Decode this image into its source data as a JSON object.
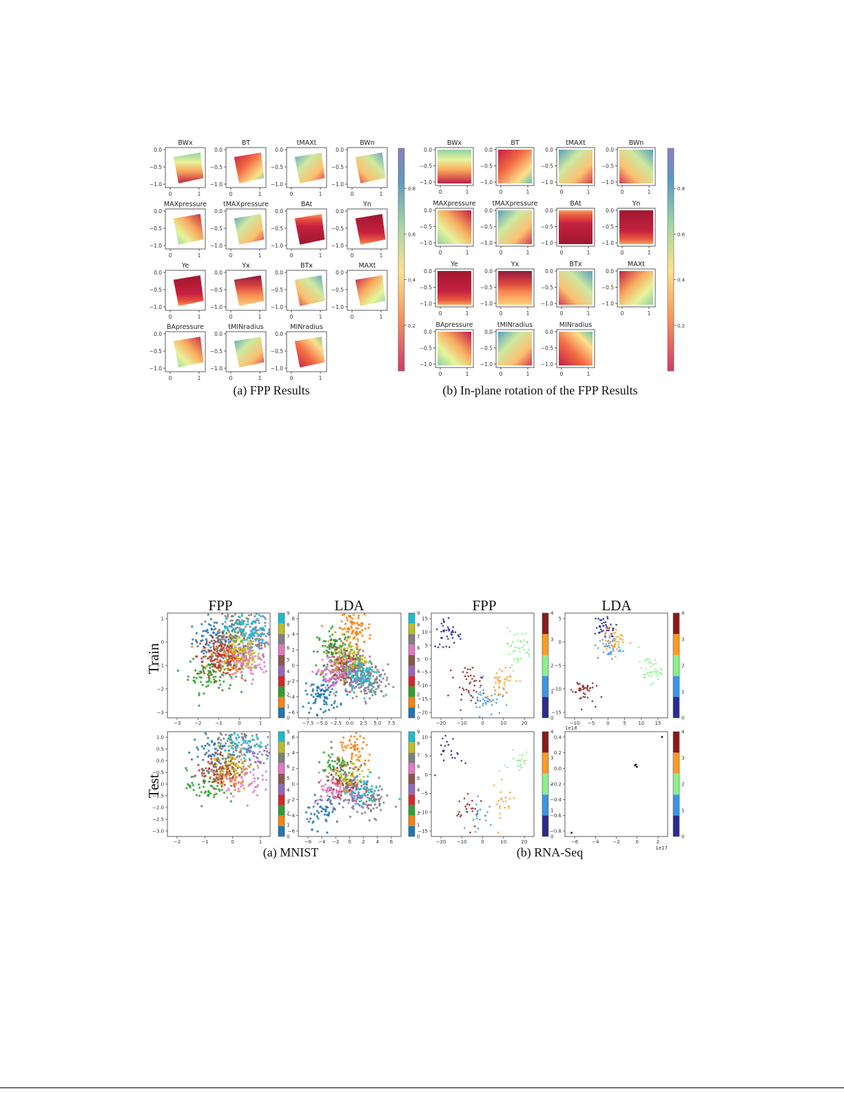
{
  "page": {
    "caption_top_a": "(a) FPP Results",
    "caption_top_b": "(b) In-plane rotation of the FPP Results",
    "caption_bottom_a": "(a) MNIST",
    "caption_bottom_b": "(b) RNA-Seq",
    "col_titles": [
      "FPP",
      "LDA",
      "FPP",
      "LDA"
    ],
    "row_titles": [
      "Train",
      "Test"
    ]
  },
  "chart_data": [
    {
      "type": "heatmap",
      "title": "(a) FPP Results",
      "panels": [
        "BWx",
        "BT",
        "tMAXt",
        "BWn",
        "MAXpressure",
        "tMAXpressure",
        "BAt",
        "Yn",
        "Ye",
        "Yx",
        "BTx",
        "MAXt",
        "BApressure",
        "tMINradius",
        "MINradius"
      ],
      "xticks": [
        "0",
        "1"
      ],
      "yticks": [
        "0.0",
        "−0.5",
        "−1.0"
      ],
      "colorbar_ticks": [
        "0.8",
        "0.6",
        "0.4",
        "0.2"
      ],
      "colormap": "Spectral",
      "rotated": true
    },
    {
      "type": "heatmap",
      "title": "(b) In-plane rotation of the FPP Results",
      "panels": [
        "BWx",
        "BT",
        "tMAXt",
        "BWn",
        "MAXpressure",
        "tMAXpressure",
        "BAt",
        "Yn",
        "Ye",
        "Yx",
        "BTx",
        "MAXt",
        "BApressure",
        "tMINradius",
        "MINradius"
      ],
      "xticks": [
        "0",
        "1"
      ],
      "yticks": [
        "0.0",
        "−0.5",
        "−1.0"
      ],
      "colorbar_ticks": [
        "0.8",
        "0.6",
        "0.4",
        "0.2"
      ],
      "colormap": "Spectral",
      "rotated": false
    },
    {
      "type": "scatter",
      "title": "FPP",
      "row": "Train",
      "dataset": "MNIST",
      "xticks": [
        "−3",
        "−2",
        "−1",
        "0",
        "1"
      ],
      "yticks": [
        "1",
        "0",
        "−1",
        "−2",
        "−3"
      ],
      "xlim": [
        -3.3,
        1.2
      ],
      "ylim": [
        -3.5,
        1.4
      ],
      "colorbar_ticks": [
        "9",
        "8",
        "7",
        "6",
        "5",
        "4",
        "3",
        "2",
        "1",
        "0"
      ],
      "clusters": [
        {
          "label": 0,
          "color": "#1f77b4",
          "x": -1.2,
          "y": 0.2
        },
        {
          "label": 1,
          "color": "#ff7f0e",
          "x": -0.5,
          "y": -0.7
        },
        {
          "label": 2,
          "color": "#2ca02c",
          "x": -1.4,
          "y": -1.4
        },
        {
          "label": 3,
          "color": "#d62728",
          "x": -1.0,
          "y": -0.6
        },
        {
          "label": 4,
          "color": "#9467bd",
          "x": 0.8,
          "y": 0.1
        },
        {
          "label": 5,
          "color": "#8c564b",
          "x": -0.6,
          "y": -0.4
        },
        {
          "label": 6,
          "color": "#e377c2",
          "x": 0.1,
          "y": -0.9
        },
        {
          "label": 7,
          "color": "#7f7f7f",
          "x": -0.2,
          "y": 0.9
        },
        {
          "label": 8,
          "color": "#bcbd22",
          "x": -0.2,
          "y": -0.3
        },
        {
          "label": 9,
          "color": "#17becf",
          "x": 0.3,
          "y": 0.5
        }
      ]
    },
    {
      "type": "scatter",
      "title": "LDA",
      "row": "Train",
      "dataset": "MNIST",
      "xticks": [
        "−7.5",
        "−5.0",
        "−2.5",
        "0.0",
        "2.5",
        "5.0",
        "7.5"
      ],
      "yticks": [
        "6",
        "4",
        "2",
        "0",
        "−2",
        "−4",
        "−6"
      ],
      "xlim": [
        -8.5,
        8.5
      ],
      "ylim": [
        -7,
        7.5
      ],
      "colorbar_ticks": [
        "9",
        "8",
        "7",
        "6",
        "5",
        "4",
        "3",
        "2",
        "1",
        "0"
      ],
      "clusters": [
        {
          "label": 0,
          "color": "#1f77b4",
          "x": -4.5,
          "y": -3.8
        },
        {
          "label": 1,
          "color": "#ff7f0e",
          "x": 0.8,
          "y": 5.5
        },
        {
          "label": 2,
          "color": "#2ca02c",
          "x": -2.5,
          "y": 2.5
        },
        {
          "label": 3,
          "color": "#d62728",
          "x": -0.5,
          "y": -0.2
        },
        {
          "label": 4,
          "color": "#9467bd",
          "x": 1.0,
          "y": -1.5
        },
        {
          "label": 5,
          "color": "#8c564b",
          "x": -1.0,
          "y": 0.5
        },
        {
          "label": 6,
          "color": "#e377c2",
          "x": -2.8,
          "y": -0.6
        },
        {
          "label": 7,
          "color": "#7f7f7f",
          "x": 3.5,
          "y": -2.2
        },
        {
          "label": 8,
          "color": "#bcbd22",
          "x": 0.0,
          "y": 1.2
        },
        {
          "label": 9,
          "color": "#17becf",
          "x": 2.0,
          "y": -1.0
        }
      ]
    },
    {
      "type": "scatter",
      "title": "FPP",
      "row": "Train",
      "dataset": "RNA-Seq",
      "xticks": [
        "−20",
        "−10",
        "0",
        "10",
        "20"
      ],
      "yticks": [
        "15",
        "10",
        "5",
        "0",
        "−5",
        "−10",
        "−15",
        "−20"
      ],
      "xlim": [
        -22,
        28
      ],
      "ylim": [
        -21,
        16
      ],
      "colorbar_ticks": [
        "4",
        "3",
        "2",
        "1",
        "0"
      ],
      "clusters": [
        {
          "label": 0,
          "color": "#1f1f8c",
          "x": -14,
          "y": 9
        },
        {
          "label": 1,
          "color": "#3a95e6",
          "x": 5,
          "y": -14
        },
        {
          "label": 2,
          "color": "#8cf08c",
          "x": 20,
          "y": 4
        },
        {
          "label": 3,
          "color": "#ff9a1e",
          "x": 12,
          "y": -8
        },
        {
          "label": 4,
          "color": "#8b1a1a",
          "x": -4,
          "y": -9
        }
      ]
    },
    {
      "type": "scatter",
      "title": "LDA",
      "row": "Train",
      "dataset": "RNA-Seq",
      "xticks": [
        "−10",
        "−5",
        "0",
        "5",
        "10",
        "15"
      ],
      "yticks": [
        "5",
        "0",
        "−5",
        "−10",
        "−15"
      ],
      "xlim": [
        -13,
        16
      ],
      "ylim": [
        -15,
        8
      ],
      "colorbar_ticks": [
        "4",
        "3",
        "2",
        "1",
        "0"
      ],
      "clusters": [
        {
          "label": 0,
          "color": "#1f1f8c",
          "x": -1.5,
          "y": 5
        },
        {
          "label": 1,
          "color": "#3a95e6",
          "x": -0.5,
          "y": 0.5
        },
        {
          "label": 2,
          "color": "#8cf08c",
          "x": 11,
          "y": -4.5
        },
        {
          "label": 3,
          "color": "#ff9a1e",
          "x": 1,
          "y": 2
        },
        {
          "label": 4,
          "color": "#8b1a1a",
          "x": -8,
          "y": -9
        }
      ]
    },
    {
      "type": "scatter",
      "title": "FPP",
      "row": "Test",
      "dataset": "MNIST",
      "xticks": [
        "−2",
        "−1",
        "0",
        "1"
      ],
      "yticks": [
        "1.0",
        "0.5",
        "0.0",
        "−0.5",
        "−1.0",
        "−1.5",
        "−2.0",
        "−2.5",
        "−3.0"
      ],
      "xlim": [
        -2.7,
        1.2
      ],
      "ylim": [
        -3.0,
        1.2
      ],
      "colorbar_ticks": [
        "9",
        "8",
        "7",
        "6",
        "5",
        "4",
        "3",
        "2",
        "1",
        "0"
      ],
      "clusters": [
        {
          "label": 0,
          "color": "#1f77b4",
          "x": -1.0,
          "y": 0.4
        },
        {
          "label": 1,
          "color": "#ff7f0e",
          "x": -0.4,
          "y": -0.5
        },
        {
          "label": 2,
          "color": "#2ca02c",
          "x": -1.2,
          "y": -1.0
        },
        {
          "label": 3,
          "color": "#d62728",
          "x": -0.8,
          "y": -0.4
        },
        {
          "label": 4,
          "color": "#9467bd",
          "x": 0.7,
          "y": 0.4
        },
        {
          "label": 5,
          "color": "#8c564b",
          "x": -0.5,
          "y": -0.2
        },
        {
          "label": 6,
          "color": "#e377c2",
          "x": 0.1,
          "y": -0.7
        },
        {
          "label": 7,
          "color": "#7f7f7f",
          "x": -0.3,
          "y": 0.9
        },
        {
          "label": 8,
          "color": "#bcbd22",
          "x": -0.2,
          "y": -0.1
        },
        {
          "label": 9,
          "color": "#17becf",
          "x": 0.2,
          "y": 0.6
        }
      ]
    },
    {
      "type": "scatter",
      "title": "LDA",
      "row": "Test",
      "dataset": "MNIST",
      "xticks": [
        "−6",
        "−4",
        "−2",
        "0",
        "2",
        "4",
        "6"
      ],
      "yticks": [
        "6",
        "4",
        "2",
        "0",
        "−2",
        "−4",
        "−6"
      ],
      "xlim": [
        -7,
        7
      ],
      "ylim": [
        -7,
        7
      ],
      "colorbar_ticks": [
        "9",
        "8",
        "7",
        "6",
        "5",
        "4",
        "3",
        "2",
        "1",
        "0"
      ],
      "clusters": [
        {
          "label": 0,
          "color": "#1f77b4",
          "x": -3.5,
          "y": -3.5
        },
        {
          "label": 1,
          "color": "#ff7f0e",
          "x": 0.8,
          "y": 4.5
        },
        {
          "label": 2,
          "color": "#2ca02c",
          "x": -2.0,
          "y": 2.0
        },
        {
          "label": 3,
          "color": "#d62728",
          "x": -0.4,
          "y": -0.2
        },
        {
          "label": 4,
          "color": "#9467bd",
          "x": 0.8,
          "y": -1.4
        },
        {
          "label": 5,
          "color": "#8c564b",
          "x": -0.8,
          "y": 0.4
        },
        {
          "label": 6,
          "color": "#e377c2",
          "x": -2.2,
          "y": -0.6
        },
        {
          "label": 7,
          "color": "#7f7f7f",
          "x": 3.0,
          "y": -2.2
        },
        {
          "label": 8,
          "color": "#bcbd22",
          "x": 0.0,
          "y": 1.0
        },
        {
          "label": 9,
          "color": "#17becf",
          "x": 1.6,
          "y": -1.0
        }
      ]
    },
    {
      "type": "scatter",
      "title": "FPP",
      "row": "Test",
      "dataset": "RNA-Seq",
      "xticks": [
        "−20",
        "−10",
        "0",
        "10",
        "20"
      ],
      "yticks": [
        "10",
        "5",
        "0",
        "−5",
        "−10",
        "−15"
      ],
      "xlim": [
        -22,
        28
      ],
      "ylim": [
        -17,
        13
      ],
      "colorbar_ticks": [
        "4",
        "3",
        "2",
        "1",
        "0"
      ],
      "clusters": [
        {
          "label": 0,
          "color": "#1f1f8c",
          "x": -13,
          "y": 8
        },
        {
          "label": 1,
          "color": "#3a95e6",
          "x": 3,
          "y": -12
        },
        {
          "label": 2,
          "color": "#8cf08c",
          "x": 20,
          "y": 5
        },
        {
          "label": 3,
          "color": "#ff9a1e",
          "x": 12,
          "y": -8
        },
        {
          "label": 4,
          "color": "#8b1a1a",
          "x": -4,
          "y": -9
        }
      ]
    },
    {
      "type": "scatter",
      "title": "LDA",
      "row": "Test",
      "dataset": "RNA-Seq",
      "xticks": [
        "−6",
        "−4",
        "−2",
        "0",
        "2"
      ],
      "yticks": [
        "0.4",
        "0.2",
        "0.0",
        "−0.2",
        "−0.4",
        "−0.6",
        "−0.8"
      ],
      "x_scale_label": "1e17",
      "y_scale_label": "1e18",
      "xlim": [
        -7.5,
        3.5
      ],
      "ylim": [
        -0.95,
        0.45
      ],
      "colorbar_ticks": [
        "4",
        "3",
        "2",
        "1",
        "0"
      ],
      "points": [
        {
          "x": -6.8,
          "y": -0.9
        },
        {
          "x": 0.0,
          "y": 0.0
        },
        {
          "x": 0.2,
          "y": -0.02
        },
        {
          "x": 0.1,
          "y": 0.01
        },
        {
          "x": 2.9,
          "y": 0.38
        }
      ]
    }
  ]
}
